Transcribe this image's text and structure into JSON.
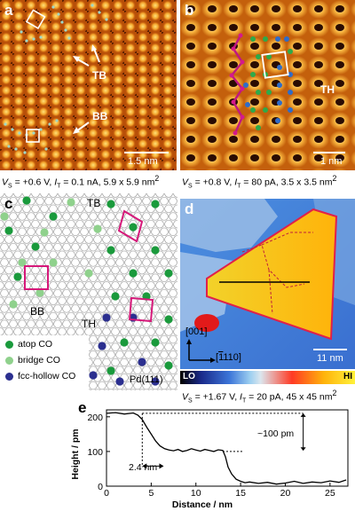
{
  "panel_a": {
    "label": "a",
    "tb": "TB",
    "bb": "BB",
    "scale": "1.5 nm",
    "caption": {
      "vs": "+0.6 V",
      "it": "0.1 nA",
      "size": "5.9 x 5.9 nm"
    }
  },
  "panel_b": {
    "label": "b",
    "th": "TH",
    "scale": "1 nm",
    "caption": {
      "vs": "+0.8 V",
      "it": "80 pA",
      "size": "3.5 x 3.5 nm"
    }
  },
  "panel_c": {
    "label": "c",
    "tb": "TB",
    "bb": "BB",
    "th": "TH",
    "surface": "Pd(111)",
    "legend": [
      {
        "label": "atop CO",
        "color": "#1a9a3c"
      },
      {
        "label": "bridge CO",
        "color": "#8fd18c"
      },
      {
        "label": "fcc-hollow CO",
        "color": "#2b2f8f"
      }
    ]
  },
  "panel_d": {
    "label": "d",
    "dir1": "[001]",
    "dir2_digits": "110",
    "dir2_bar": "1",
    "scale": "11 nm",
    "colorbar_lo": "LO",
    "colorbar_hi": "HI",
    "caption": {
      "vs": "+1.67 V",
      "it": "20 pA",
      "size": "45 x 45 nm"
    }
  },
  "panel_e": {
    "label": "e",
    "annot_step": "~100 pm",
    "annot_width": "2.4 nm"
  },
  "chart_data": {
    "type": "line",
    "xlabel": "Distance / nm",
    "ylabel": "Height / pm",
    "xlim": [
      0,
      27
    ],
    "ylim": [
      0,
      220
    ],
    "xticks": [
      0,
      5,
      10,
      15,
      20,
      25
    ],
    "yticks": [
      0,
      100,
      200
    ],
    "series": [
      {
        "x": [
          0,
          1,
          2,
          3,
          3.5,
          4,
          4.5,
          5,
          5.5,
          6,
          6.5,
          7,
          7.5,
          8,
          8.5,
          9,
          9.5,
          10,
          10.5,
          11,
          11.5,
          12,
          12.5,
          13,
          13.3,
          13.6,
          14,
          14.5,
          15,
          15.5,
          16,
          17,
          18,
          19,
          20,
          21,
          22,
          23,
          24,
          25,
          26,
          26.8
        ],
        "y": [
          210,
          212,
          208,
          211,
          205,
          192,
          170,
          150,
          130,
          116,
          108,
          104,
          102,
          106,
          100,
          103,
          108,
          104,
          101,
          106,
          103,
          100,
          105,
          103,
          85,
          55,
          35,
          20,
          14,
          10,
          12,
          8,
          11,
          6,
          9,
          14,
          8,
          12,
          10,
          15,
          11,
          18
        ]
      }
    ]
  }
}
